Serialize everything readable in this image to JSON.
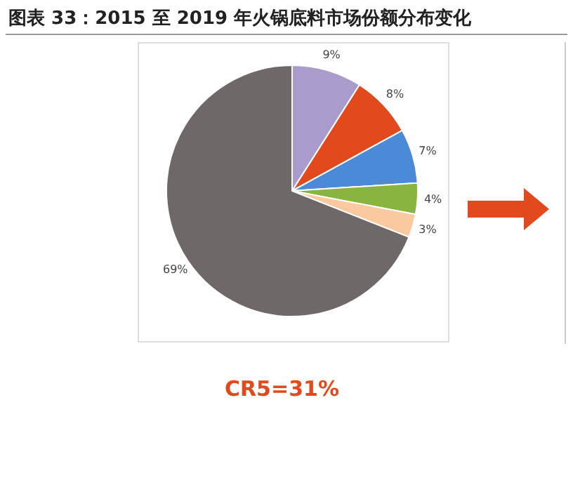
{
  "chart_data": {
    "type": "pie",
    "title": "图表 33：2015 至 2019 年火锅底料市场份额分布变化",
    "categories": [
      null,
      null,
      null,
      null,
      null,
      null
    ],
    "values": [
      9,
      8,
      7,
      4,
      3,
      69
    ],
    "colors": [
      "#a99bcc",
      "#e2491c",
      "#4a8ad6",
      "#8ab440",
      "#f9c9a0",
      "#6e6968"
    ],
    "value_labels": [
      "9%",
      "8%",
      "7%",
      "4%",
      "3%",
      "69%"
    ],
    "annotations": [
      "CR5=31%"
    ],
    "legend": false
  }
}
